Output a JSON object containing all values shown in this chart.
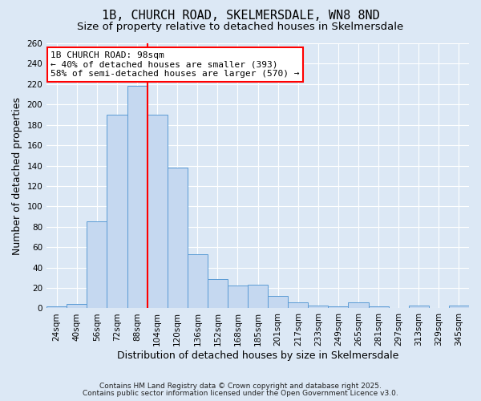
{
  "title": "1B, CHURCH ROAD, SKELMERSDALE, WN8 8ND",
  "subtitle": "Size of property relative to detached houses in Skelmersdale",
  "xlabel": "Distribution of detached houses by size in Skelmersdale",
  "ylabel": "Number of detached properties",
  "bar_labels": [
    "24sqm",
    "40sqm",
    "56sqm",
    "72sqm",
    "88sqm",
    "104sqm",
    "120sqm",
    "136sqm",
    "152sqm",
    "168sqm",
    "185sqm",
    "201sqm",
    "217sqm",
    "233sqm",
    "249sqm",
    "265sqm",
    "281sqm",
    "297sqm",
    "313sqm",
    "329sqm",
    "345sqm"
  ],
  "bar_values": [
    2,
    4,
    85,
    190,
    218,
    190,
    138,
    53,
    29,
    22,
    23,
    12,
    6,
    3,
    2,
    6,
    2,
    0,
    3,
    0,
    3
  ],
  "bar_color": "#c5d8f0",
  "bar_edge_color": "#5b9bd5",
  "vline_color": "red",
  "vline_x": 4.5,
  "ylim": [
    0,
    260
  ],
  "yticks": [
    0,
    20,
    40,
    60,
    80,
    100,
    120,
    140,
    160,
    180,
    200,
    220,
    240,
    260
  ],
  "annotation_text": "1B CHURCH ROAD: 98sqm\n← 40% of detached houses are smaller (393)\n58% of semi-detached houses are larger (570) →",
  "annotation_box_color": "white",
  "annotation_box_edge": "red",
  "footnote1": "Contains HM Land Registry data © Crown copyright and database right 2025.",
  "footnote2": "Contains public sector information licensed under the Open Government Licence v3.0.",
  "background_color": "#dce8f5",
  "plot_bg_color": "#dce8f5",
  "title_fontsize": 11,
  "subtitle_fontsize": 9.5,
  "tick_label_fontsize": 7.5,
  "axis_label_fontsize": 9,
  "annotation_fontsize": 8
}
